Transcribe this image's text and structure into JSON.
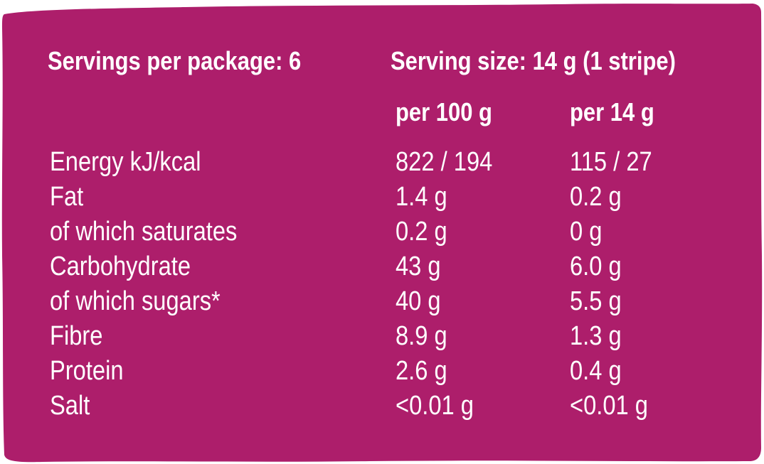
{
  "colors": {
    "panel_background": "#ad1e6b",
    "text": "#ffffff"
  },
  "header": {
    "servings_per_package": "Servings per package: 6",
    "serving_size": "Serving size: 14 g (1 stripe)"
  },
  "columns": {
    "per_100g": "per 100 g",
    "per_serving": "per 14 g"
  },
  "rows": [
    {
      "label": "Energy kJ/kcal",
      "per_100g": "822 / 194",
      "per_serving": "115 / 27"
    },
    {
      "label": "Fat",
      "per_100g": "1.4 g",
      "per_serving": "0.2 g"
    },
    {
      "label": "of which saturates",
      "per_100g": "0.2 g",
      "per_serving": "0 g"
    },
    {
      "label": "Carbohydrate",
      "per_100g": "43 g",
      "per_serving": "6.0 g"
    },
    {
      "label": "of which sugars*",
      "per_100g": "40 g",
      "per_serving": "5.5 g"
    },
    {
      "label": "Fibre",
      "per_100g": "8.9 g",
      "per_serving": "1.3 g"
    },
    {
      "label": "Protein",
      "per_100g": "2.6 g",
      "per_serving": "0.4 g"
    },
    {
      "label": "Salt",
      "per_100g": "<0.01 g",
      "per_serving": "<0.01 g"
    }
  ]
}
